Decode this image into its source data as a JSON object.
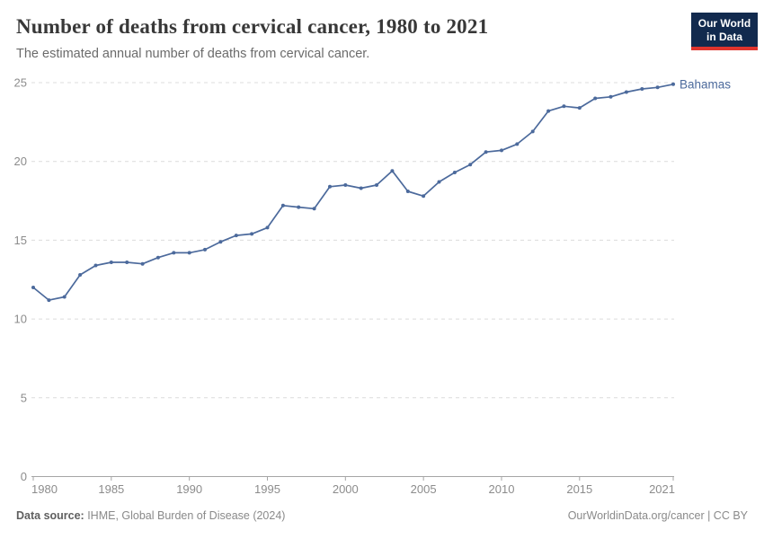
{
  "header": {
    "title": "Number of deaths from cervical cancer, 1980 to 2021",
    "subtitle": "The estimated annual number of deaths from cervical cancer.",
    "logo": {
      "line1": "Our World",
      "line2": "in Data",
      "bg_color": "#122a4e",
      "bar_color": "#e0342d"
    }
  },
  "chart_data": {
    "type": "line",
    "title": "Number of deaths from cervical cancer, 1980 to 2021",
    "entity": "Bahamas",
    "x": [
      1980,
      1981,
      1982,
      1983,
      1984,
      1985,
      1986,
      1987,
      1988,
      1989,
      1990,
      1991,
      1992,
      1993,
      1994,
      1995,
      1996,
      1997,
      1998,
      1999,
      2000,
      2001,
      2002,
      2003,
      2004,
      2005,
      2006,
      2007,
      2008,
      2009,
      2010,
      2011,
      2012,
      2013,
      2014,
      2015,
      2016,
      2017,
      2018,
      2019,
      2020,
      2021
    ],
    "series": [
      {
        "name": "Bahamas",
        "color": "#4C6A9C",
        "values": [
          12.0,
          11.2,
          11.4,
          12.8,
          13.4,
          13.6,
          13.6,
          13.5,
          13.9,
          14.2,
          14.2,
          14.4,
          14.9,
          15.3,
          15.4,
          15.8,
          17.2,
          17.1,
          17.0,
          18.4,
          18.5,
          18.3,
          18.5,
          19.4,
          18.1,
          17.8,
          18.7,
          19.3,
          19.8,
          20.6,
          20.7,
          21.1,
          21.9,
          23.2,
          23.5,
          23.4,
          24.0,
          24.1,
          24.4,
          24.6,
          24.7,
          24.9
        ]
      }
    ],
    "xlabel": "",
    "ylabel": "",
    "xlim": [
      1980,
      2021
    ],
    "ylim": [
      0,
      25
    ],
    "xticks": [
      1980,
      1985,
      1990,
      1995,
      2000,
      2005,
      2010,
      2015,
      2021
    ],
    "yticks": [
      0,
      5,
      10,
      15,
      20,
      25
    ],
    "grid": "horizontal-dashed",
    "legend_position": "end-of-line",
    "grid_color": "#dcdcdc",
    "axis_color": "#a5a5a5"
  },
  "footer": {
    "source_label": "Data source:",
    "source_text": " IHME, Global Burden of Disease (2024)",
    "credit": "OurWorldinData.org/cancer | CC BY"
  }
}
